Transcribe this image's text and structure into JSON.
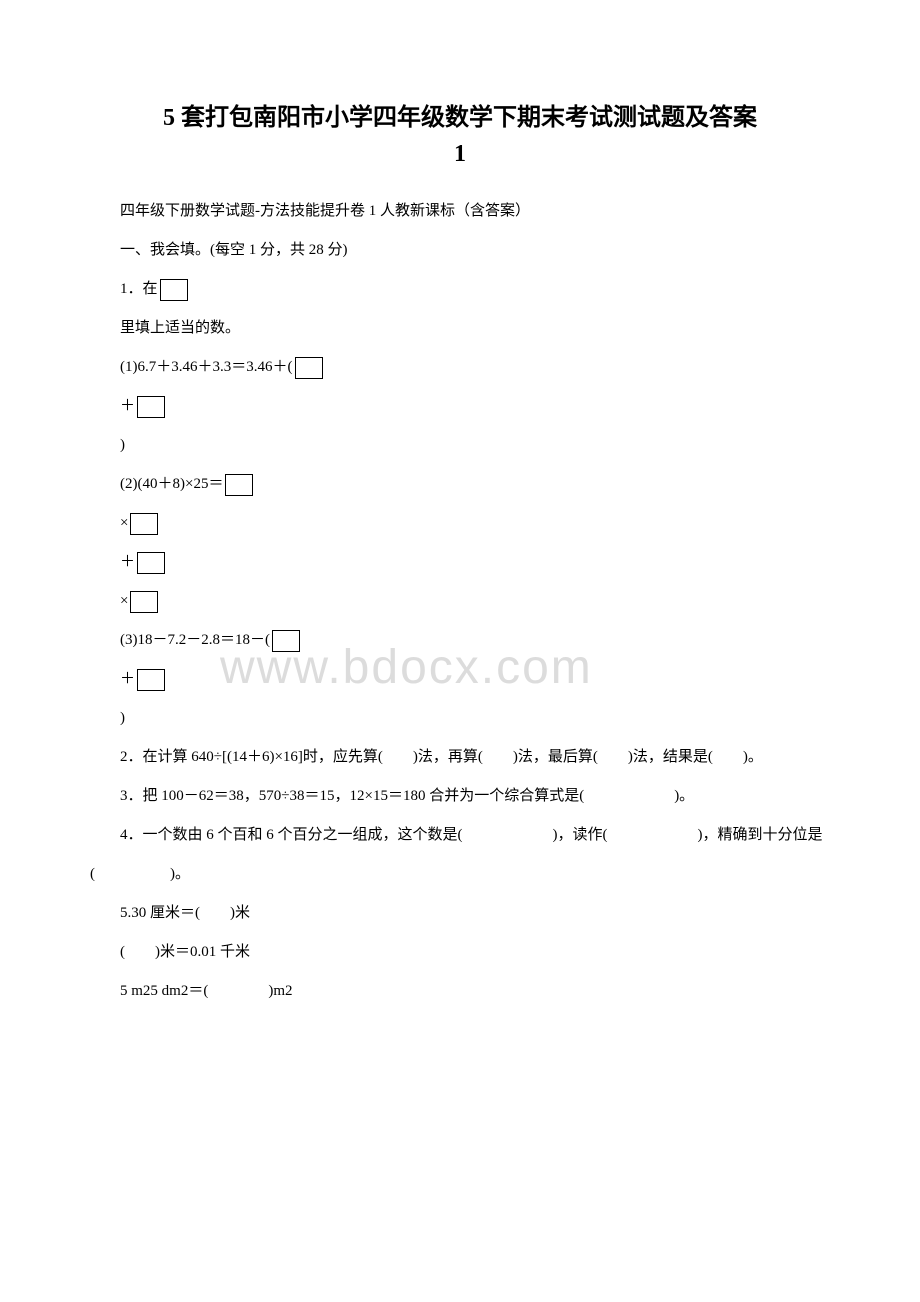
{
  "watermark": "www.bdocx.com",
  "title_line1": "5 套打包南阳市小学四年级数学下期末考试测试题及答案",
  "title_line2": "1",
  "p1": "四年级下册数学试题-方法技能提升卷 1 人教新课标（含答案）",
  "p2": "一、我会填。(每空 1 分，共 28 分)",
  "q1_prefix": "1．在",
  "q1_text": "里填上适当的数。",
  "q1_1": "(1)6.7＋3.46＋3.3＝3.46＋(",
  "plus": "＋",
  "paren_close": ")",
  "q1_2": "(2)(40＋8)×25＝",
  "times": "×",
  "q1_3": "(3)18－7.2－2.8＝18－(",
  "q2": "2．在计算 640÷[(14＋6)×16]时，应先算(　　)法，再算(　　)法，最后算(　　)法，结果是(　　)。",
  "q3": "3．把 100－62＝38，570÷38＝15，12×15＝180 合并为一个综合算式是(　　　　　　)。",
  "q4": "4．一个数由 6 个百和 6 个百分之一组成，这个数是(　　　　　　)，读作(　　　　　　)，精确到十分位是(　　　　　)。",
  "q5": "5.30 厘米＝(　　)米",
  "q5b": "(　　)米＝0.01 千米",
  "q5c": "5 m25 dm2＝(　　　　)m2"
}
